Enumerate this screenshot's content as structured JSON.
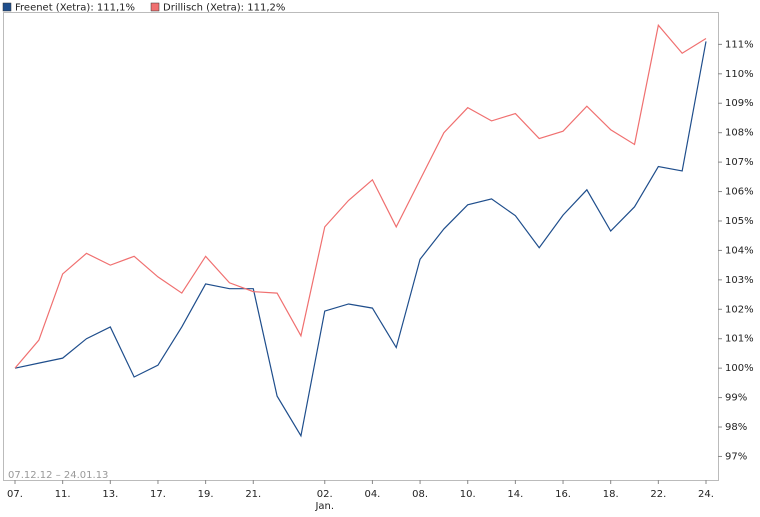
{
  "chart_data": {
    "type": "line",
    "subtitle": "07.12.12 – 24.01.13",
    "categories": [
      "07.",
      null,
      "11.",
      null,
      "13.",
      null,
      "17.",
      null,
      "19.",
      null,
      "21.",
      null,
      null,
      "02.",
      null,
      "04.",
      null,
      "08.",
      null,
      "10.",
      null,
      "14.",
      null,
      "16.",
      null,
      "18.",
      null,
      "22.",
      null,
      "24."
    ],
    "annotations": [
      {
        "index": 13,
        "text": "Jan."
      }
    ],
    "series": [
      {
        "name": "Freenet (Xetra): 111,1%",
        "color": "#1f4e8c",
        "values": [
          100.0,
          100.17,
          100.34,
          101.0,
          101.4,
          99.7,
          100.1,
          101.4,
          102.86,
          102.7,
          102.7,
          99.05,
          97.7,
          101.94,
          102.18,
          102.04,
          100.7,
          103.7,
          104.73,
          105.55,
          105.75,
          105.18,
          104.09,
          105.2,
          106.06,
          104.66,
          105.48,
          106.85,
          106.7,
          111.1
        ]
      },
      {
        "name": "Drillisch (Xetra): 111,2%",
        "color": "#f07070",
        "values": [
          100.0,
          100.95,
          103.2,
          103.9,
          103.5,
          103.8,
          103.1,
          102.55,
          103.8,
          102.9,
          102.6,
          102.55,
          101.1,
          104.8,
          105.7,
          106.4,
          104.8,
          106.4,
          108.0,
          108.85,
          108.4,
          108.65,
          107.8,
          108.05,
          108.9,
          108.1,
          107.6,
          111.65,
          110.7,
          111.2
        ]
      }
    ],
    "ylim": [
      96.2,
      112.1
    ],
    "yticks": [
      {
        "value": 97,
        "label": "97%"
      },
      {
        "value": 98,
        "label": "98%"
      },
      {
        "value": 99,
        "label": "99%"
      },
      {
        "value": 100,
        "label": "100%"
      },
      {
        "value": 101,
        "label": "101%"
      },
      {
        "value": 102,
        "label": "102%"
      },
      {
        "value": 103,
        "label": "103%"
      },
      {
        "value": 104,
        "label": "104%"
      },
      {
        "value": 105,
        "label": "105%"
      },
      {
        "value": 106,
        "label": "106%"
      },
      {
        "value": 107,
        "label": "107%"
      },
      {
        "value": 108,
        "label": "108%"
      },
      {
        "value": 109,
        "label": "109%"
      },
      {
        "value": 110,
        "label": "110%"
      },
      {
        "value": 111,
        "label": "111%"
      }
    ],
    "grid": false
  }
}
